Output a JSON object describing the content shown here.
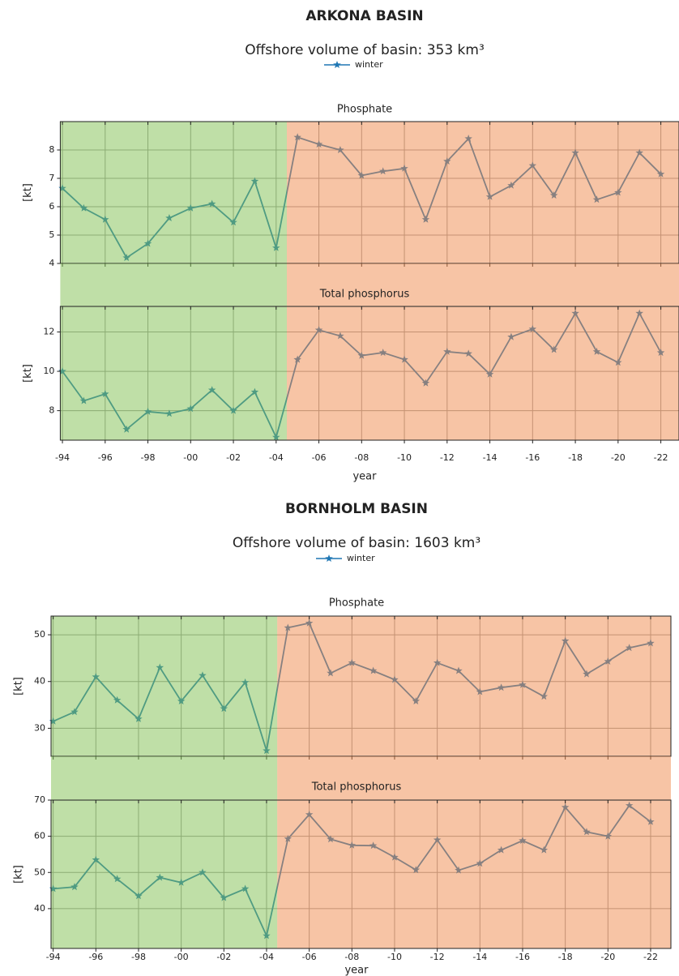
{
  "chart_data": [
    {
      "type": "line",
      "title": "ARKONA BASIN",
      "subtitle": "Offshore volume of basin: 353 km³",
      "xlabel": "year",
      "series": [
        {
          "name": "winter",
          "color": "#1f77b4",
          "marker": "star"
        }
      ],
      "categories": [
        "-94",
        null,
        "-96",
        null,
        "-98",
        null,
        "-00",
        null,
        "-02",
        null,
        "-04",
        null,
        "-06",
        null,
        "-08",
        null,
        "-10",
        null,
        "-12",
        null,
        "-14",
        null,
        "-16",
        null,
        "-18",
        null,
        "-20",
        null,
        "-22"
      ],
      "xlim": [
        -0.1,
        28.85
      ],
      "grid": true,
      "shaded_regions": [
        {
          "from": -0.1,
          "to": 10.5,
          "color": "#7fbf4f"
        },
        {
          "from": 10.5,
          "to": 28.85,
          "color": "#f08a4b"
        }
      ],
      "panels": [
        {
          "title": "Phosphate",
          "ylabel": "[kt]",
          "ylim": [
            4,
            9
          ],
          "yticks": [
            4,
            5,
            6,
            7,
            8
          ],
          "values": [
            6.65,
            5.95,
            5.55,
            4.2,
            4.7,
            5.6,
            5.95,
            6.1,
            5.45,
            6.9,
            4.55,
            8.45,
            8.2,
            8.0,
            7.1,
            7.25,
            7.35,
            5.55,
            7.6,
            8.4,
            6.35,
            6.75,
            7.45,
            6.4,
            7.9,
            6.25,
            6.5,
            7.9,
            7.15
          ]
        },
        {
          "title": "Total phosphorus",
          "ylabel": "[kt]",
          "ylim": [
            6.5,
            13.3
          ],
          "yticks": [
            8,
            10,
            12
          ],
          "values": [
            10.0,
            8.5,
            8.85,
            7.05,
            7.95,
            7.85,
            8.1,
            9.05,
            8.0,
            8.95,
            6.65,
            10.6,
            12.1,
            11.8,
            10.8,
            10.95,
            10.6,
            9.4,
            11.0,
            10.9,
            9.85,
            11.75,
            12.15,
            11.1,
            12.95,
            11.0,
            10.45,
            12.95,
            10.95
          ]
        }
      ]
    },
    {
      "type": "line",
      "title": "BORNHOLM BASIN",
      "subtitle": "Offshore volume of basin: 1603 km³",
      "xlabel": "year",
      "series": [
        {
          "name": "winter",
          "color": "#1f77b4",
          "marker": "star"
        }
      ],
      "categories": [
        "-94",
        null,
        "-96",
        null,
        "-98",
        null,
        "-00",
        null,
        "-02",
        null,
        "-04",
        null,
        "-06",
        null,
        "-08",
        null,
        "-10",
        null,
        "-12",
        null,
        "-14",
        null,
        "-16",
        null,
        "-18",
        null,
        "-20",
        null,
        "-22"
      ],
      "xlim": [
        -0.1,
        28.95
      ],
      "grid": true,
      "shaded_regions": [
        {
          "from": -0.1,
          "to": 10.5,
          "color": "#7fbf4f"
        },
        {
          "from": 10.5,
          "to": 28.95,
          "color": "#f08a4b"
        }
      ],
      "panels": [
        {
          "title": "Phosphate",
          "ylabel": "[kt]",
          "ylim": [
            24,
            54
          ],
          "yticks": [
            30,
            40,
            50
          ],
          "values": [
            31.5,
            33.5,
            41,
            36,
            32,
            43,
            35.8,
            41.3,
            34.2,
            39.8,
            25.2,
            51.5,
            52.5,
            41.8,
            44,
            42.3,
            40.4,
            35.8,
            44,
            42.3,
            37.8,
            38.7,
            39.3,
            36.8,
            48.7,
            41.6,
            44.3,
            47.2,
            48.2
          ]
        },
        {
          "title": "Total phosphorus",
          "ylabel": "[kt]",
          "ylim": [
            29,
            70
          ],
          "yticks": [
            40,
            50,
            60,
            70
          ],
          "values": [
            45.5,
            46,
            53.5,
            48.2,
            43.5,
            48.6,
            47.2,
            50,
            43,
            45.5,
            32.5,
            59.3,
            66,
            59.2,
            57.5,
            57.4,
            54.2,
            50.7,
            59,
            50.6,
            52.5,
            56.2,
            58.8,
            56.2,
            68,
            61.2,
            60,
            68.5,
            64
          ]
        }
      ]
    }
  ]
}
